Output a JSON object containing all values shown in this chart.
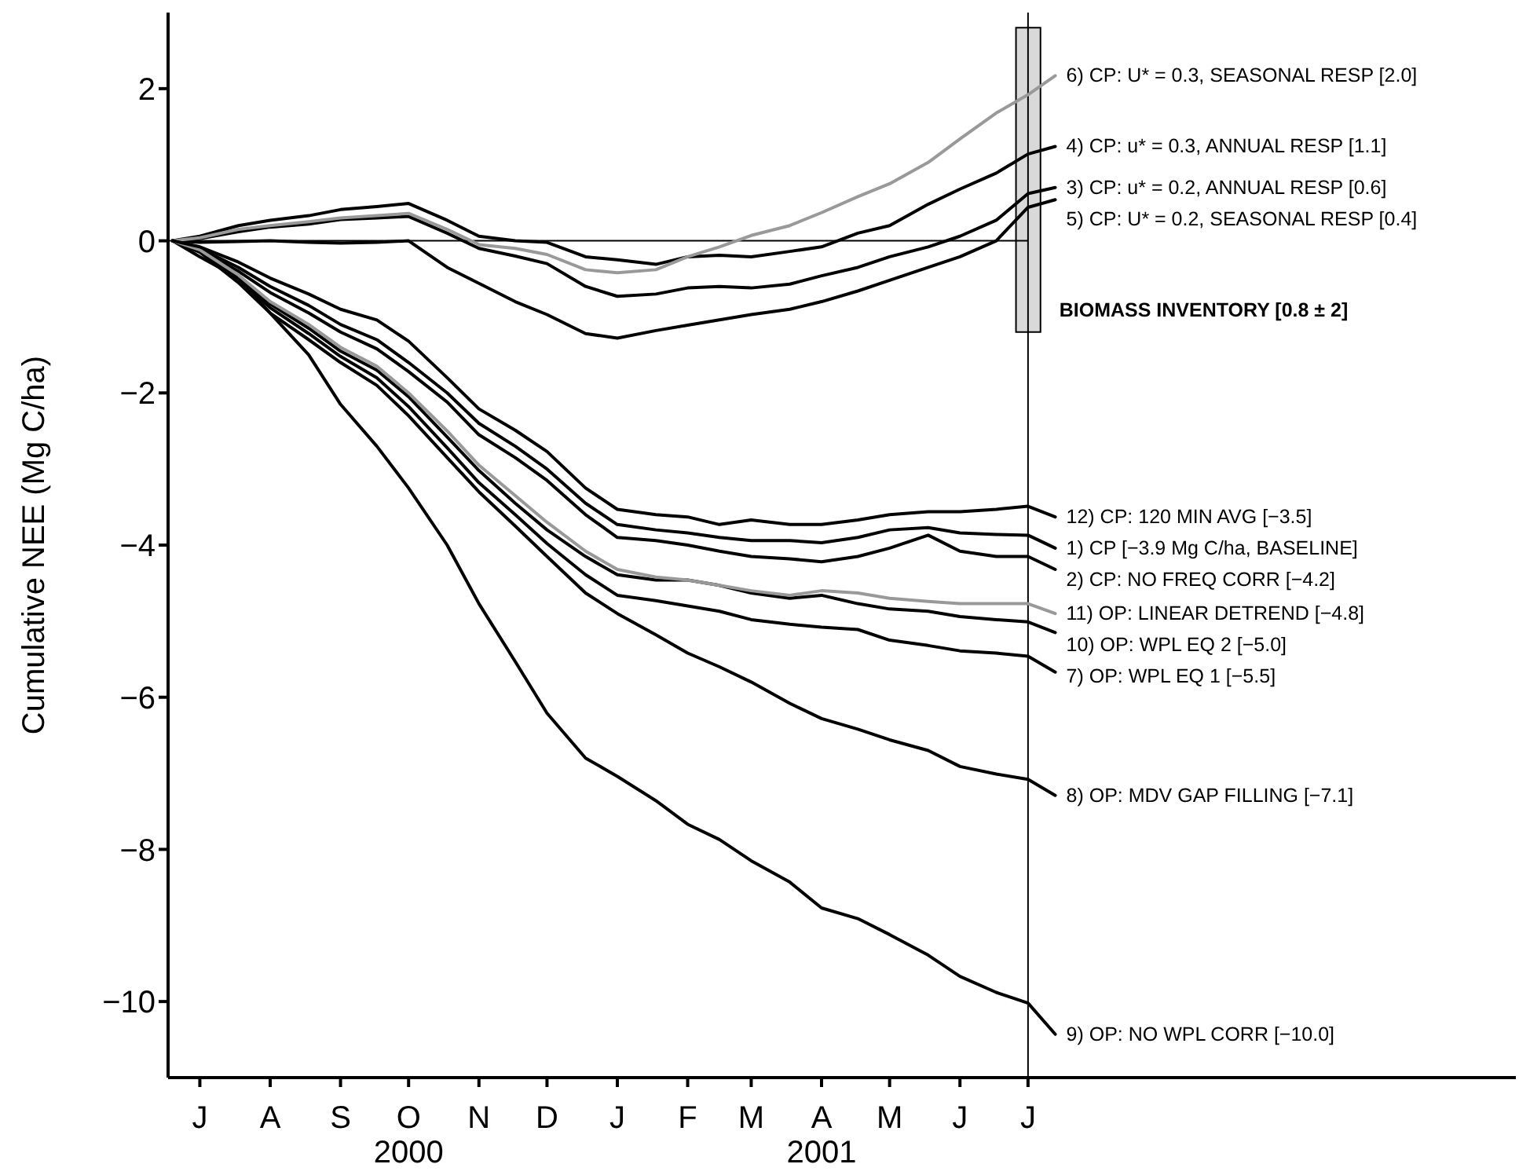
{
  "chart_data": {
    "type": "line",
    "ylabel": "Cumulative NEE (Mg C/ha)",
    "x": [
      "2000-07-03",
      "2000-07-15",
      "2000-08-01",
      "2000-08-15",
      "2000-09-01",
      "2000-09-15",
      "2000-10-01",
      "2000-10-15",
      "2000-11-01",
      "2000-11-15",
      "2000-12-01",
      "2000-12-15",
      "2001-01-01",
      "2001-01-15",
      "2001-02-01",
      "2001-02-15",
      "2001-03-01",
      "2001-03-15",
      "2001-04-01",
      "2001-04-15",
      "2001-05-01",
      "2001-05-15",
      "2001-06-01",
      "2001-06-15",
      "2001-07-01",
      "2001-07-15",
      "2001-07-27"
    ],
    "xlim": [
      "2000-07-01",
      "2002-02-15"
    ],
    "xticks": [
      {
        "value": "2000-07-15",
        "label": "J"
      },
      {
        "value": "2000-08-15",
        "label": "A"
      },
      {
        "value": "2000-09-15",
        "label": "S"
      },
      {
        "value": "2000-10-15",
        "label": "O\n2000"
      },
      {
        "value": "2000-11-15",
        "label": "N"
      },
      {
        "value": "2000-12-15",
        "label": "D"
      },
      {
        "value": "2001-01-15",
        "label": "J"
      },
      {
        "value": "2001-02-15",
        "label": "F"
      },
      {
        "value": "2001-03-15",
        "label": "M"
      },
      {
        "value": "2001-04-15",
        "label": "A\n2001"
      },
      {
        "value": "2001-05-15",
        "label": "M"
      },
      {
        "value": "2001-06-15",
        "label": "J"
      },
      {
        "value": "2001-07-15",
        "label": "J"
      }
    ],
    "ylim": [
      -11,
      3
    ],
    "yticks": [
      -10,
      -8,
      -6,
      -4,
      -2,
      0,
      2
    ],
    "series": [
      {
        "name": "1) CP [−3.9 Mg C/ha, BASELINE]",
        "color": "#000000",
        "values": [
          0,
          -0.1,
          -0.35,
          -0.6,
          -0.85,
          -1.1,
          -1.3,
          -1.6,
          -2.0,
          -2.4,
          -2.7,
          -3.0,
          -3.45,
          -3.73,
          -3.8,
          -3.84,
          -3.9,
          -3.94,
          -3.94,
          -3.97,
          -3.9,
          -3.8,
          -3.77,
          -3.84,
          -3.86,
          -3.87,
          -4.04
        ]
      },
      {
        "name": "2) CP: NO FREQ CORR [−4.2]",
        "color": "#000000",
        "values": [
          0,
          -0.12,
          -0.4,
          -0.68,
          -0.95,
          -1.2,
          -1.42,
          -1.72,
          -2.12,
          -2.55,
          -2.85,
          -3.15,
          -3.6,
          -3.9,
          -3.94,
          -4.0,
          -4.08,
          -4.15,
          -4.18,
          -4.22,
          -4.15,
          -4.04,
          -3.87,
          -4.08,
          -4.15,
          -4.15,
          -4.32
        ]
      },
      {
        "name": "3) CP: u* = 0.2, ANNUAL RESP [0.6]",
        "color": "#000000",
        "values": [
          0,
          0.03,
          0.12,
          0.18,
          0.22,
          0.28,
          0.3,
          0.32,
          0.1,
          -0.1,
          -0.2,
          -0.3,
          -0.6,
          -0.73,
          -0.7,
          -0.62,
          -0.6,
          -0.62,
          -0.57,
          -0.46,
          -0.35,
          -0.21,
          -0.08,
          0.06,
          0.27,
          0.62,
          0.7
        ]
      },
      {
        "name": "4) CP: u* = 0.3, ANNUAL RESP [1.1]",
        "color": "#000000",
        "values": [
          0,
          0.06,
          0.2,
          0.27,
          0.33,
          0.41,
          0.45,
          0.49,
          0.27,
          0.06,
          0.0,
          -0.02,
          -0.21,
          -0.25,
          -0.31,
          -0.21,
          -0.19,
          -0.21,
          -0.14,
          -0.08,
          0.1,
          0.2,
          0.48,
          0.68,
          0.89,
          1.14,
          1.24
        ]
      },
      {
        "name": "5) CP: U* = 0.2, SEASONAL RESP [0.4]",
        "color": "#000000",
        "values": [
          0,
          -0.02,
          -0.01,
          0,
          -0.02,
          -0.03,
          -0.02,
          0,
          -0.35,
          -0.56,
          -0.8,
          -0.97,
          -1.22,
          -1.28,
          -1.18,
          -1.11,
          -1.04,
          -0.97,
          -0.9,
          -0.8,
          -0.66,
          -0.52,
          -0.35,
          -0.21,
          0.0,
          0.44,
          0.54
        ]
      },
      {
        "name": "6) CP: U* = 0.3, SEASONAL RESP [2.0]",
        "color": "#999999",
        "values": [
          0,
          0.04,
          0.15,
          0.2,
          0.25,
          0.3,
          0.33,
          0.36,
          0.15,
          -0.05,
          -0.1,
          -0.18,
          -0.38,
          -0.42,
          -0.38,
          -0.21,
          -0.08,
          0.07,
          0.2,
          0.37,
          0.58,
          0.75,
          1.03,
          1.34,
          1.68,
          1.92,
          2.17
        ]
      },
      {
        "name": "7) OP: WPL EQ 1 [−5.5]",
        "color": "#000000",
        "values": [
          0,
          -0.14,
          -0.5,
          -0.88,
          -1.22,
          -1.52,
          -1.8,
          -2.18,
          -2.72,
          -3.18,
          -3.6,
          -3.98,
          -4.39,
          -4.66,
          -4.73,
          -4.8,
          -4.87,
          -4.98,
          -5.04,
          -5.08,
          -5.11,
          -5.25,
          -5.32,
          -5.39,
          -5.42,
          -5.46,
          -5.67
        ]
      },
      {
        "name": "8) OP: MDV GAP FILLING [−7.1]",
        "color": "#000000",
        "values": [
          0,
          -0.15,
          -0.55,
          -0.95,
          -1.3,
          -1.6,
          -1.9,
          -2.3,
          -2.85,
          -3.3,
          -3.75,
          -4.15,
          -4.63,
          -4.9,
          -5.18,
          -5.42,
          -5.6,
          -5.8,
          -6.08,
          -6.28,
          -6.42,
          -6.56,
          -6.7,
          -6.91,
          -7.01,
          -7.08,
          -7.29
        ]
      },
      {
        "name": "9) OP: NO WPL CORR [−10.0]",
        "color": "#000000",
        "values": [
          0,
          -0.21,
          -0.49,
          -0.95,
          -1.5,
          -2.15,
          -2.7,
          -3.25,
          -4.0,
          -4.77,
          -5.53,
          -6.21,
          -6.8,
          -7.04,
          -7.36,
          -7.67,
          -7.87,
          -8.15,
          -8.43,
          -8.77,
          -8.91,
          -9.12,
          -9.39,
          -9.67,
          -9.88,
          -10.02,
          -10.43
        ]
      },
      {
        "name": "10) OP: WPL EQ 2 [−5.0]",
        "color": "#000000",
        "values": [
          0,
          -0.13,
          -0.47,
          -0.83,
          -1.15,
          -1.45,
          -1.7,
          -2.05,
          -2.58,
          -3.02,
          -3.45,
          -3.8,
          -4.15,
          -4.39,
          -4.46,
          -4.46,
          -4.53,
          -4.63,
          -4.7,
          -4.66,
          -4.77,
          -4.84,
          -4.87,
          -4.94,
          -4.98,
          -5.01,
          -5.15
        ]
      },
      {
        "name": "11) OP: LINEAR DETREND [−4.8]",
        "color": "#999999",
        "values": [
          0,
          -0.12,
          -0.45,
          -0.8,
          -1.1,
          -1.4,
          -1.65,
          -2.0,
          -2.5,
          -2.95,
          -3.35,
          -3.7,
          -4.08,
          -4.32,
          -4.42,
          -4.46,
          -4.53,
          -4.6,
          -4.66,
          -4.6,
          -4.63,
          -4.7,
          -4.74,
          -4.77,
          -4.77,
          -4.77,
          -4.9
        ]
      },
      {
        "name": "12) CP: 120 MIN AVG [−3.5]",
        "color": "#000000",
        "values": [
          0,
          -0.08,
          -0.28,
          -0.49,
          -0.7,
          -0.9,
          -1.04,
          -1.32,
          -1.8,
          -2.21,
          -2.49,
          -2.77,
          -3.25,
          -3.53,
          -3.6,
          -3.63,
          -3.73,
          -3.67,
          -3.73,
          -3.73,
          -3.67,
          -3.6,
          -3.56,
          -3.56,
          -3.53,
          -3.49,
          -3.63
        ]
      },
      {
        "type": "bar",
        "name": "BIOMASS INVENTORY [0.8 ± 2]",
        "color": "#d9d9d9",
        "x": [
          "2001-07-15"
        ],
        "base": [
          -1.2
        ],
        "values": [
          4.0
        ]
      }
    ],
    "ref_lines": [
      {
        "axis": "y",
        "value": 0
      },
      {
        "axis": "x",
        "value": "2001-07-15"
      }
    ]
  }
}
